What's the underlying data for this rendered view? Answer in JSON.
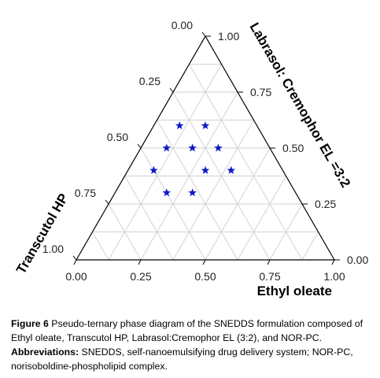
{
  "chart_data": {
    "type": "scatter",
    "subtype": "ternary",
    "axes": {
      "bottom": {
        "label": "Ethyl oleate",
        "ticks": [
          "0.00",
          "0.25",
          "0.50",
          "0.75",
          "1.00"
        ]
      },
      "right": {
        "label": "Labrasol: Cremophor EL =3:2",
        "ticks": [
          "0.00",
          "0.25",
          "0.50",
          "0.75",
          "1.00"
        ]
      },
      "left": {
        "label": "Transcutol HP",
        "ticks": [
          "0.00",
          "0.25",
          "0.50",
          "0.75",
          "1.00"
        ]
      },
      "range": [
        0,
        1
      ],
      "grid": true,
      "grid_step": 0.125
    },
    "marker": "star",
    "marker_color": "#1018c8",
    "points": [
      {
        "ethyl_oleate": 0.1,
        "labrasol_cremophor": 0.6,
        "transcutol_hp": 0.3
      },
      {
        "ethyl_oleate": 0.2,
        "labrasol_cremophor": 0.6,
        "transcutol_hp": 0.2
      },
      {
        "ethyl_oleate": 0.3,
        "labrasol_cremophor": 0.5,
        "transcutol_hp": 0.2
      },
      {
        "ethyl_oleate": 0.1,
        "labrasol_cremophor": 0.5,
        "transcutol_hp": 0.4
      },
      {
        "ethyl_oleate": 0.3,
        "labrasol_cremophor": 0.4,
        "transcutol_hp": 0.3
      },
      {
        "ethyl_oleate": 0.2,
        "labrasol_cremophor": 0.5,
        "transcutol_hp": 0.3
      },
      {
        "ethyl_oleate": 0.1,
        "labrasol_cremophor": 0.4,
        "transcutol_hp": 0.5
      },
      {
        "ethyl_oleate": 0.2,
        "labrasol_cremophor": 0.3,
        "transcutol_hp": 0.5
      },
      {
        "ethyl_oleate": 0.3,
        "labrasol_cremophor": 0.3,
        "transcutol_hp": 0.4
      },
      {
        "ethyl_oleate": 0.4,
        "labrasol_cremophor": 0.4,
        "transcutol_hp": 0.2
      }
    ]
  },
  "caption": {
    "figure_label": "Figure 6",
    "figure_text": "Pseudo-ternary phase diagram of the SNEDDS formulation composed of Ethyl oleate, Transcutol HP, Labrasol:Cremophor EL (3:2), and NOR-PC.",
    "abbr_label": "Abbreviations:",
    "abbr_text": "SNEDDS, self-nanoemulsifying drug delivery system; NOR-PC, norisoboldine-phospholipid complex."
  }
}
